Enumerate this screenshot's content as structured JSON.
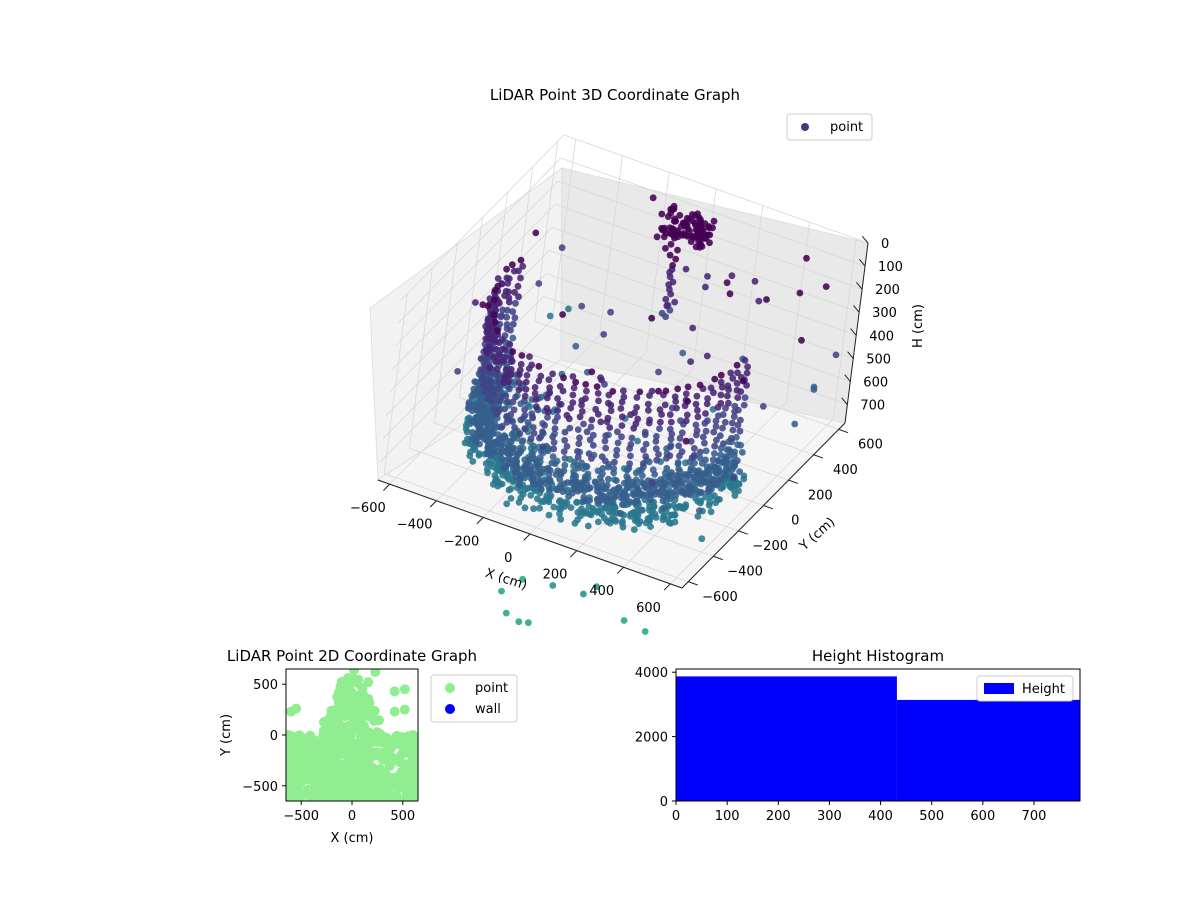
{
  "chart_data": [
    {
      "type": "scatter3d",
      "title": "LiDAR Point 3D Coordinate Graph",
      "xlabel": "X (cm)",
      "ylabel": "Y (cm)",
      "zlabel": "H (cm)",
      "xlim": [
        -650,
        650
      ],
      "ylim": [
        -650,
        650
      ],
      "zlim": [
        0,
        780
      ],
      "z_inverted": true,
      "xticks": [
        "−600",
        "−400",
        "−200",
        "0",
        "200",
        "400",
        "600"
      ],
      "yticks": [
        "−600",
        "−400",
        "−200",
        "0",
        "200",
        "400",
        "600"
      ],
      "zticks": [
        "0",
        "100",
        "200",
        "300",
        "400",
        "500",
        "600",
        "700"
      ],
      "legend": {
        "position": "top-right",
        "entries": [
          "point"
        ]
      },
      "grid": true,
      "colormap": "viridis",
      "structure": {
        "wall_arc": {
          "radius_cm": 520,
          "start_angle_deg": 170,
          "end_angle_deg": 360,
          "height_range_cm": [
            180,
            680
          ]
        },
        "floor_ring": {
          "inner_radius_cm": 450,
          "outer_radius_cm": 560,
          "height_range_cm": [
            590,
            760
          ]
        },
        "pillar": {
          "x_cm": -20,
          "y_cm": 380,
          "height_range_cm": [
            60,
            430
          ]
        },
        "ceiling_cluster": {
          "x_cm": -20,
          "y_cm": 470,
          "height_range_cm": [
            30,
            130
          ]
        },
        "sparse_points": {
          "x_range_cm": [
            -600,
            650
          ],
          "y_range_cm": [
            -650,
            650
          ],
          "height_range_cm": [
            0,
            780
          ]
        }
      }
    },
    {
      "type": "scatter",
      "title": "LiDAR Point 2D Coordinate Graph",
      "xlabel": "X (cm)",
      "ylabel": "Y (cm)",
      "xlim": [
        -650,
        650
      ],
      "ylim": [
        -650,
        650
      ],
      "xticks": [
        "−500",
        "0",
        "500"
      ],
      "yticks": [
        "−500",
        "0",
        "500"
      ],
      "legend": {
        "position": "outside-right",
        "entries": [
          "point",
          "wall"
        ]
      },
      "series": [
        {
          "name": "point",
          "color": "#90ee90"
        },
        {
          "name": "wall",
          "color": "#0000ff",
          "values": []
        }
      ],
      "outliers": [
        [
          -600,
          230
        ],
        [
          -550,
          260
        ],
        [
          20,
          640
        ],
        [
          230,
          620
        ],
        [
          420,
          430
        ],
        [
          520,
          450
        ],
        [
          420,
          230
        ],
        [
          520,
          250
        ],
        [
          -40,
          560
        ],
        [
          160,
          520
        ]
      ]
    },
    {
      "type": "bar",
      "title": "Height Histogram",
      "xlim": [
        0,
        790
      ],
      "ylim": [
        0,
        4100
      ],
      "xticks": [
        "0",
        "100",
        "200",
        "300",
        "400",
        "500",
        "600",
        "700"
      ],
      "yticks": [
        "0",
        "2000",
        "4000"
      ],
      "legend": {
        "position": "top-right",
        "entries": [
          "Height"
        ]
      },
      "color": "#0000ff",
      "bins": [
        {
          "x0": 0,
          "x1": 432,
          "count": 3870
        },
        {
          "x0": 432,
          "x1": 790,
          "count": 3140
        }
      ]
    }
  ]
}
